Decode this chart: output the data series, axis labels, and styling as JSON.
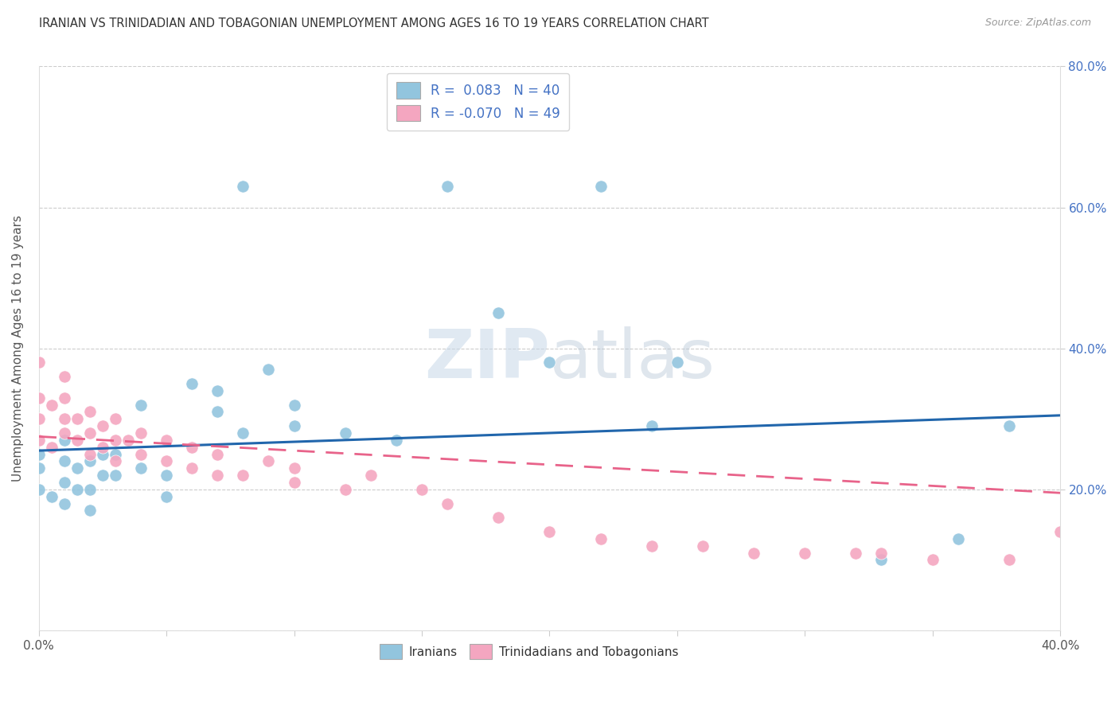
{
  "title": "IRANIAN VS TRINIDADIAN AND TOBAGONIAN UNEMPLOYMENT AMONG AGES 16 TO 19 YEARS CORRELATION CHART",
  "source": "Source: ZipAtlas.com",
  "ylabel": "Unemployment Among Ages 16 to 19 years",
  "xlim": [
    0.0,
    0.4
  ],
  "ylim": [
    0.0,
    0.8
  ],
  "color_iranian": "#92c5de",
  "color_trinidadian": "#f4a6c0",
  "trend_color_iranian": "#2166ac",
  "trend_color_trinidadian": "#e8638a",
  "iranians_x": [
    0.0,
    0.0,
    0.0,
    0.005,
    0.01,
    0.01,
    0.01,
    0.01,
    0.015,
    0.015,
    0.02,
    0.02,
    0.02,
    0.025,
    0.025,
    0.03,
    0.03,
    0.04,
    0.04,
    0.05,
    0.05,
    0.06,
    0.07,
    0.07,
    0.08,
    0.08,
    0.09,
    0.1,
    0.1,
    0.12,
    0.14,
    0.16,
    0.18,
    0.2,
    0.22,
    0.24,
    0.25,
    0.33,
    0.36,
    0.38
  ],
  "iranians_y": [
    0.2,
    0.23,
    0.25,
    0.19,
    0.18,
    0.21,
    0.24,
    0.27,
    0.2,
    0.23,
    0.17,
    0.2,
    0.24,
    0.22,
    0.25,
    0.22,
    0.25,
    0.23,
    0.32,
    0.19,
    0.22,
    0.35,
    0.31,
    0.34,
    0.28,
    0.63,
    0.37,
    0.29,
    0.32,
    0.28,
    0.27,
    0.63,
    0.45,
    0.38,
    0.63,
    0.29,
    0.38,
    0.1,
    0.13,
    0.29
  ],
  "trinidadians_x": [
    0.0,
    0.0,
    0.0,
    0.0,
    0.005,
    0.005,
    0.01,
    0.01,
    0.01,
    0.01,
    0.015,
    0.015,
    0.02,
    0.02,
    0.02,
    0.025,
    0.025,
    0.03,
    0.03,
    0.03,
    0.035,
    0.04,
    0.04,
    0.05,
    0.05,
    0.06,
    0.06,
    0.07,
    0.07,
    0.08,
    0.09,
    0.1,
    0.1,
    0.12,
    0.13,
    0.15,
    0.16,
    0.18,
    0.2,
    0.22,
    0.24,
    0.26,
    0.28,
    0.3,
    0.32,
    0.33,
    0.35,
    0.38,
    0.4
  ],
  "trinidadians_y": [
    0.27,
    0.3,
    0.33,
    0.38,
    0.26,
    0.32,
    0.28,
    0.3,
    0.33,
    0.36,
    0.27,
    0.3,
    0.25,
    0.28,
    0.31,
    0.26,
    0.29,
    0.24,
    0.27,
    0.3,
    0.27,
    0.25,
    0.28,
    0.24,
    0.27,
    0.23,
    0.26,
    0.22,
    0.25,
    0.22,
    0.24,
    0.21,
    0.23,
    0.2,
    0.22,
    0.2,
    0.18,
    0.16,
    0.14,
    0.13,
    0.12,
    0.12,
    0.11,
    0.11,
    0.11,
    0.11,
    0.1,
    0.1,
    0.14
  ],
  "iran_trend_x0": 0.0,
  "iran_trend_x1": 0.4,
  "iran_trend_y0": 0.255,
  "iran_trend_y1": 0.305,
  "trin_trend_x0": 0.0,
  "trin_trend_x1": 0.4,
  "trin_trend_y0": 0.275,
  "trin_trend_y1": 0.195
}
